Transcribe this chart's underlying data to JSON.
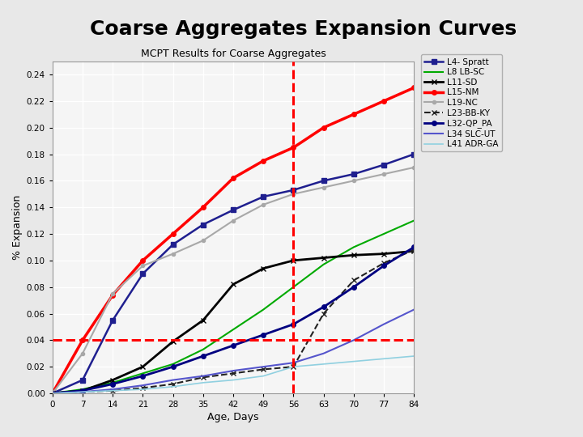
{
  "title": "Coarse Aggregates Expansion Curves",
  "subtitle": "MCPT Results for Coarse Aggregates",
  "xlabel": "Age, Days",
  "ylabel": "% Expansion",
  "xlim": [
    0,
    84
  ],
  "ylim": [
    0.0,
    0.25
  ],
  "xticks": [
    0,
    7,
    14,
    21,
    28,
    35,
    42,
    49,
    56,
    63,
    70,
    77,
    84
  ],
  "yticks": [
    0.0,
    0.02,
    0.04,
    0.06,
    0.08,
    0.1,
    0.12,
    0.14,
    0.16,
    0.18,
    0.2,
    0.22,
    0.24
  ],
  "vline_x": 56,
  "hline_y": 0.04,
  "outer_bg": "#e8e8e8",
  "plot_bg": "#f5f5f5",
  "series": [
    {
      "label": "L4- Spratt",
      "color": "#1F1F8F",
      "marker": "s",
      "markersize": 4,
      "linestyle": "-",
      "linewidth": 1.8,
      "x": [
        0,
        7,
        14,
        21,
        28,
        35,
        42,
        49,
        56,
        63,
        70,
        77,
        84
      ],
      "y": [
        0.0,
        0.01,
        0.055,
        0.09,
        0.112,
        0.127,
        0.138,
        0.148,
        0.153,
        0.16,
        0.165,
        0.172,
        0.18
      ]
    },
    {
      "label": "L8 LB-SC",
      "color": "#00AA00",
      "marker": "o",
      "markersize": 0,
      "linestyle": "-",
      "linewidth": 1.5,
      "x": [
        0,
        7,
        14,
        21,
        28,
        35,
        42,
        49,
        56,
        63,
        70,
        77,
        84
      ],
      "y": [
        0.0,
        0.003,
        0.008,
        0.015,
        0.022,
        0.033,
        0.048,
        0.063,
        0.08,
        0.097,
        0.11,
        0.12,
        0.13
      ]
    },
    {
      "label": "L11-SD",
      "color": "#000000",
      "marker": "x",
      "markersize": 5,
      "linestyle": "-",
      "linewidth": 2.0,
      "x": [
        0,
        7,
        14,
        21,
        28,
        35,
        42,
        49,
        56,
        63,
        70,
        77,
        84
      ],
      "y": [
        0.0,
        0.002,
        0.01,
        0.02,
        0.039,
        0.055,
        0.082,
        0.094,
        0.1,
        0.102,
        0.104,
        0.105,
        0.107
      ]
    },
    {
      "label": "L15-NM",
      "color": "#FF0000",
      "marker": "o",
      "markersize": 4,
      "linestyle": "-",
      "linewidth": 2.5,
      "x": [
        0,
        7,
        14,
        21,
        28,
        35,
        42,
        49,
        56,
        63,
        70,
        77,
        84
      ],
      "y": [
        0.0,
        0.04,
        0.074,
        0.1,
        0.12,
        0.14,
        0.162,
        0.175,
        0.185,
        0.2,
        0.21,
        0.22,
        0.23
      ]
    },
    {
      "label": "L19-NC",
      "color": "#A8A8A8",
      "marker": "o",
      "markersize": 3,
      "linestyle": "-",
      "linewidth": 1.5,
      "x": [
        0,
        7,
        14,
        21,
        28,
        35,
        42,
        49,
        56,
        63,
        70,
        77,
        84
      ],
      "y": [
        0.0,
        0.03,
        0.075,
        0.096,
        0.105,
        0.115,
        0.13,
        0.142,
        0.15,
        0.155,
        0.16,
        0.165,
        0.17
      ]
    },
    {
      "label": "L23-BB-KY",
      "color": "#222222",
      "marker": "x",
      "markersize": 5,
      "linestyle": "--",
      "linewidth": 1.5,
      "x": [
        0,
        7,
        14,
        21,
        28,
        35,
        42,
        49,
        56,
        63,
        70,
        77,
        84
      ],
      "y": [
        0.0,
        0.001,
        0.002,
        0.004,
        0.007,
        0.012,
        0.015,
        0.018,
        0.02,
        0.06,
        0.085,
        0.098,
        0.108
      ]
    },
    {
      "label": "L32-QP_PA",
      "color": "#000080",
      "marker": "o",
      "markersize": 4,
      "linestyle": "-",
      "linewidth": 2.0,
      "x": [
        0,
        7,
        14,
        21,
        28,
        35,
        42,
        49,
        56,
        63,
        70,
        77,
        84
      ],
      "y": [
        0.0,
        0.002,
        0.007,
        0.013,
        0.02,
        0.028,
        0.036,
        0.044,
        0.052,
        0.065,
        0.08,
        0.096,
        0.11
      ]
    },
    {
      "label": "L34 SLC-UT",
      "color": "#5555CC",
      "marker": null,
      "markersize": 0,
      "linestyle": "-",
      "linewidth": 1.5,
      "x": [
        0,
        7,
        14,
        21,
        28,
        35,
        42,
        49,
        56,
        63,
        70,
        77,
        84
      ],
      "y": [
        0.0,
        0.001,
        0.003,
        0.006,
        0.01,
        0.013,
        0.017,
        0.02,
        0.023,
        0.03,
        0.04,
        0.052,
        0.063
      ]
    },
    {
      "label": "L41 ADR-GA",
      "color": "#90D0E0",
      "marker": null,
      "markersize": 0,
      "linestyle": "-",
      "linewidth": 1.2,
      "x": [
        0,
        7,
        14,
        21,
        28,
        35,
        42,
        49,
        56,
        63,
        70,
        77,
        84
      ],
      "y": [
        0.0,
        0.001,
        0.002,
        0.003,
        0.005,
        0.008,
        0.01,
        0.013,
        0.02,
        0.022,
        0.024,
        0.026,
        0.028
      ]
    }
  ]
}
